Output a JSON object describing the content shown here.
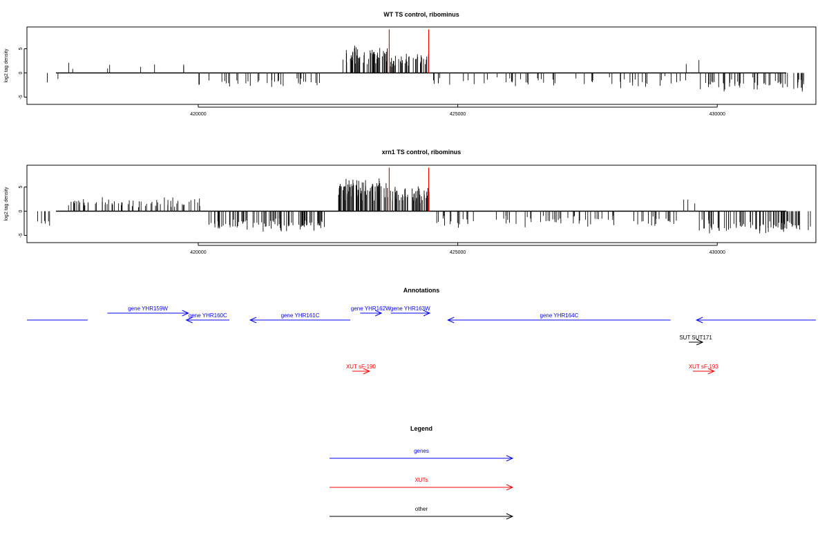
{
  "chart_data": [
    {
      "type": "bar",
      "title": "WT TS control, ribominus",
      "ylabel": "log2 tag density",
      "xlim": [
        416700,
        431900
      ],
      "ylim": [
        -6.5,
        9.5
      ],
      "xticks": [
        420000,
        425000,
        430000
      ],
      "xtick_labels": [
        "420000",
        "425000",
        "430000"
      ],
      "yticks": [
        -5,
        0,
        5
      ],
      "ytick_labels": [
        "-5",
        "0",
        "5"
      ],
      "bar_color": "#000000",
      "red_markers": [
        423680,
        424440
      ],
      "red_marker_height": 9,
      "regions": [
        {
          "start": 416700,
          "end": 417300,
          "mean": -1.6,
          "amp": 0.9,
          "density": 0.015
        },
        {
          "start": 417300,
          "end": 418500,
          "mean": 1.4,
          "amp": 0.8,
          "density": 0.012
        },
        {
          "start": 418500,
          "end": 419900,
          "mean": 1.5,
          "amp": 0.7,
          "density": 0.01
        },
        {
          "start": 420000,
          "end": 422400,
          "mean": -2.0,
          "amp": 1.0,
          "density": 0.06
        },
        {
          "start": 422750,
          "end": 423650,
          "mean": 3.8,
          "amp": 1.8,
          "density": 0.25
        },
        {
          "start": 423700,
          "end": 424450,
          "mean": 2.9,
          "amp": 1.4,
          "density": 0.2
        },
        {
          "start": 424500,
          "end": 429400,
          "mean": -1.9,
          "amp": 1.0,
          "density": 0.045
        },
        {
          "start": 429350,
          "end": 429650,
          "mean": 1.5,
          "amp": 1.2,
          "density": 0.01
        },
        {
          "start": 429650,
          "end": 431800,
          "mean": -2.4,
          "amp": 1.1,
          "density": 0.1
        }
      ]
    },
    {
      "type": "bar",
      "title": "xrn1 TS control, ribominus",
      "ylabel": "log2 tag density",
      "xlim": [
        416700,
        431900
      ],
      "ylim": [
        -6.5,
        9.5
      ],
      "xticks": [
        420000,
        425000,
        430000
      ],
      "xtick_labels": [
        "420000",
        "425000",
        "430000"
      ],
      "yticks": [
        -5,
        0,
        5
      ],
      "ytick_labels": [
        "-5",
        "0",
        "5"
      ],
      "bar_color": "#000000",
      "red_markers": [
        423680,
        424440
      ],
      "red_marker_height": 9,
      "regions": [
        {
          "start": 416700,
          "end": 417300,
          "mean": -2.6,
          "amp": 1.2,
          "density": 0.04
        },
        {
          "start": 417500,
          "end": 420100,
          "mean": 1.7,
          "amp": 1.0,
          "density": 0.1
        },
        {
          "start": 420200,
          "end": 422500,
          "mean": -2.8,
          "amp": 1.2,
          "density": 0.15
        },
        {
          "start": 422700,
          "end": 423650,
          "mean": 4.5,
          "amp": 2.0,
          "density": 0.35
        },
        {
          "start": 423700,
          "end": 424450,
          "mean": 3.6,
          "amp": 1.6,
          "density": 0.3
        },
        {
          "start": 424500,
          "end": 429350,
          "mean": -2.1,
          "amp": 1.0,
          "density": 0.06
        },
        {
          "start": 429350,
          "end": 429600,
          "mean": 2.4,
          "amp": 0.8,
          "density": 0.04
        },
        {
          "start": 429650,
          "end": 431800,
          "mean": -3.2,
          "amp": 1.3,
          "density": 0.15
        }
      ]
    }
  ],
  "annotations": {
    "title": "Annotations",
    "features": [
      {
        "name": "",
        "start": 416700,
        "end": 417870,
        "row": 0,
        "strand": "-",
        "type": "gene",
        "arrow": false
      },
      {
        "name": "gene YHR159W",
        "start": 418250,
        "end": 419810,
        "row": 1,
        "strand": "+",
        "type": "gene",
        "arrow": true
      },
      {
        "name": "gene YHR160C",
        "start": 419770,
        "end": 420600,
        "row": 0,
        "strand": "-",
        "type": "gene",
        "arrow": true
      },
      {
        "name": "gene YHR161C",
        "start": 421000,
        "end": 422930,
        "row": 0,
        "strand": "-",
        "type": "gene",
        "arrow": true
      },
      {
        "name": "gene YHR162W",
        "start": 423120,
        "end": 423530,
        "row": 1,
        "strand": "+",
        "type": "gene",
        "arrow": true
      },
      {
        "name": "gene YHR163W",
        "start": 423710,
        "end": 424460,
        "row": 1,
        "strand": "+",
        "type": "gene",
        "arrow": true
      },
      {
        "name": "gene YHR164C",
        "start": 424810,
        "end": 429100,
        "row": 0,
        "strand": "-",
        "type": "gene",
        "arrow": true
      },
      {
        "name": "",
        "start": 429600,
        "end": 431900,
        "row": 0,
        "strand": "-",
        "type": "gene",
        "arrow": true
      },
      {
        "name": "SUT SUT171",
        "start": 429450,
        "end": 429720,
        "row": 2,
        "strand": "+",
        "type": "other",
        "arrow": true
      },
      {
        "name": "XUT sF-190",
        "start": 422970,
        "end": 423300,
        "row": 3,
        "strand": "+",
        "type": "xut",
        "arrow": true
      },
      {
        "name": "XUT sF-193",
        "start": 429530,
        "end": 429940,
        "row": 3,
        "strand": "+",
        "type": "xut",
        "arrow": true
      }
    ]
  },
  "legend": {
    "title": "Legend",
    "items": [
      {
        "label": "genes",
        "color": "#0000ff"
      },
      {
        "label": "XUTs",
        "color": "#ff0000"
      },
      {
        "label": "other",
        "color": "#000000"
      }
    ]
  },
  "colors": {
    "gene": "#0000ff",
    "xut": "#ff0000",
    "other": "#000000"
  }
}
